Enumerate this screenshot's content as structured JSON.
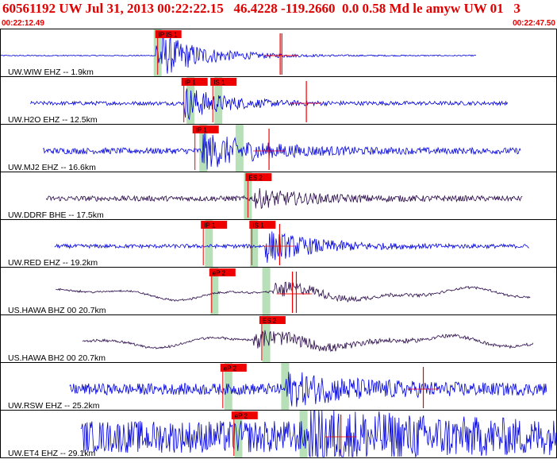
{
  "header": {
    "title": "60561192 UW Jul 31, 2013 00:22:22.15   46.4228 -119.2660  0.0 0.58 Md le amyw UW 01   3",
    "start_time": "00:22:12.49",
    "end_time": "00:22:47.50"
  },
  "colors": {
    "title": "#e00000",
    "ehz_trace": "#0000dd",
    "broadband_trace": "#2a0a4a",
    "pick_box": "#ee0000",
    "pick_window": "#b8e0b8",
    "frame": "#000000"
  },
  "chart_data": {
    "type": "line",
    "title": "60561192 UW Jul 31, 2013 00:22:22.15   46.4228 -119.2660  0.0 0.58 Md le amyw UW 01   3",
    "xlim": [
      "00:22:12.49",
      "00:22:47.50"
    ],
    "series": [
      {
        "name": "UW.WIW EHZ -- 1.9km",
        "color": "#0000dd",
        "trace_span": [
          0.0,
          0.856
        ],
        "onset": 0.28,
        "peak_amp": 1.3,
        "noise": 0.03,
        "decay": 0.08,
        "tone": "hf",
        "picks": [
          {
            "label": "IP IS 1",
            "pos": 0.283
          }
        ],
        "marks": [
          0.283
        ],
        "red_ticks": [
          0.503,
          0.506
        ]
      },
      {
        "name": "UW.H2O EHZ -- 12.5km",
        "color": "#0000dd",
        "trace_span": [
          0.055,
          0.912
        ],
        "onset": 0.33,
        "peak_amp": 0.9,
        "noise": 0.1,
        "decay": 0.07,
        "tone": "hf",
        "picks": [
          {
            "label": "IP 1",
            "pos": 0.33
          },
          {
            "label": "IS 1",
            "pos": 0.382
          }
        ],
        "marks": [
          0.342,
          0.392
        ],
        "red_ticks": [
          0.55
        ]
      },
      {
        "name": "UW.MJ2 EHZ -- 16.6km",
        "color": "#0000dd",
        "trace_span": [
          0.077,
          0.935
        ],
        "onset": 0.362,
        "peak_amp": 0.95,
        "noise": 0.16,
        "decay": 0.1,
        "tone": "hf",
        "picks": [
          {
            "label": "IP 1",
            "pos": 0.35
          }
        ],
        "marks": [
          0.365,
          0.43
        ],
        "red_ticks": [
          0.483
        ]
      },
      {
        "name": "UW.DDRF BHE -- 17.5km",
        "color": "#2a0a4a",
        "trace_span": [
          0.083,
          0.939
        ],
        "onset": 0.455,
        "peak_amp": 0.45,
        "noise": 0.14,
        "decay": 0.1,
        "tone": "hf",
        "picks": [
          {
            "label": "ES 2",
            "pos": 0.445
          }
        ],
        "marks": [
          0.445
        ],
        "red_ticks": []
      },
      {
        "name": "UW.RED EHZ -- 19.2km",
        "color": "#0000dd",
        "trace_span": [
          0.098,
          0.95
        ],
        "onset": 0.475,
        "peak_amp": 0.85,
        "noise": 0.1,
        "decay": 0.09,
        "tone": "hf",
        "picks": [
          {
            "label": "IP 1",
            "pos": 0.365
          },
          {
            "label": "IS 1",
            "pos": 0.452
          }
        ],
        "marks": [
          0.375,
          0.456
        ],
        "red_ticks": [
          0.502
        ]
      },
      {
        "name": "US.HAWA BHZ 00 20.7km",
        "color": "#2a0a4a",
        "trace_span": [
          0.1,
          0.953
        ],
        "onset": 0.49,
        "peak_amp": 0.5,
        "noise": 0.04,
        "decay": 0.1,
        "tone": "lp",
        "picks": [
          {
            "label": "eP 2",
            "pos": 0.38
          }
        ],
        "marks": [
          0.385,
          0.478
        ],
        "red_ticks": [
          0.525,
          0.532
        ]
      },
      {
        "name": "US.HAWA BH2 00 20.7km",
        "color": "#2a0a4a",
        "trace_span": [
          0.148,
          0.958
        ],
        "onset": 0.455,
        "peak_amp": 0.55,
        "noise": 0.06,
        "decay": 0.13,
        "tone": "lp",
        "picks": [
          {
            "label": "ES 2",
            "pos": 0.47
          }
        ],
        "marks": [
          0.478
        ],
        "red_ticks": []
      },
      {
        "name": "UW.RSW EHZ -- 25.2km",
        "color": "#0000dd",
        "trace_span": [
          0.125,
          0.982
        ],
        "onset": 0.51,
        "peak_amp": 0.75,
        "noise": 0.3,
        "decay": 0.14,
        "tone": "hf",
        "picks": [
          {
            "label": "eP 2",
            "pos": 0.4
          }
        ],
        "marks": [
          0.41,
          0.512
        ],
        "red_ticks": [
          0.76
        ]
      },
      {
        "name": "UW.ET4 EHZ -- 29.1km",
        "color": "#0000dd",
        "trace_span": [
          0.145,
          1.0
        ],
        "onset": 0.555,
        "peak_amp": 0.95,
        "noise": 0.85,
        "decay": 0.2,
        "tone": "hf",
        "picks": [
          {
            "label": "eP 2",
            "pos": 0.42
          }
        ],
        "marks": [
          0.428,
          0.545
        ],
        "red_ticks": [
          0.612
        ]
      }
    ]
  }
}
